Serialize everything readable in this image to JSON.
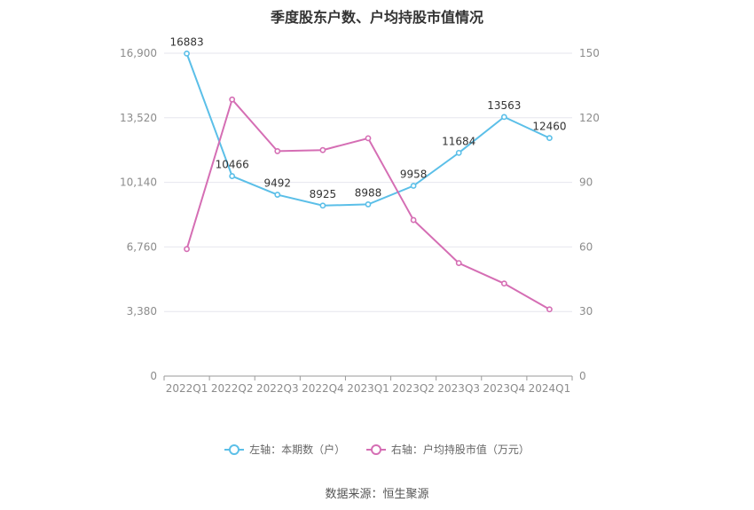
{
  "colors": {
    "series_left": "#5bbfe8",
    "series_right": "#d56eb4",
    "grid": "#e6e6ee",
    "axis_text": "#8c8c8c",
    "label_text": "#333333"
  },
  "source_text": "数据来源：恒生聚源",
  "chart_data": {
    "type": "line",
    "title": "季度股东户数、户均持股市值情况",
    "categories": [
      "2022Q1",
      "2022Q2",
      "2022Q3",
      "2022Q4",
      "2023Q1",
      "2023Q2",
      "2023Q3",
      "2023Q4",
      "2024Q1"
    ],
    "y_left": {
      "ticks": [
        0,
        3380,
        6760,
        10140,
        13520,
        16900
      ],
      "tick_labels": [
        "0",
        "3,380",
        "6,760",
        "10,140",
        "13,520",
        "16,900"
      ],
      "ylim": [
        0,
        16900
      ]
    },
    "y_right": {
      "ticks": [
        0,
        30,
        60,
        90,
        120,
        150
      ],
      "tick_labels": [
        "0",
        "30",
        "60",
        "90",
        "120",
        "150"
      ],
      "ylim": [
        0,
        150
      ]
    },
    "series": [
      {
        "name": "左轴：本期数（户）",
        "axis": "left",
        "values": [
          16883,
          10466,
          9492,
          8925,
          8988,
          9958,
          11684,
          13563,
          12460
        ],
        "labels": [
          "16883",
          "10466",
          "9492",
          "8925",
          "8988",
          "9958",
          "11684",
          "13563",
          "12460"
        ]
      },
      {
        "name": "右轴：户均持股市值（万元）",
        "axis": "right",
        "values": [
          59,
          128.5,
          104.5,
          105,
          110.5,
          72.5,
          52.5,
          43,
          31
        ]
      }
    ],
    "legend_position": "bottom",
    "grid": true
  }
}
